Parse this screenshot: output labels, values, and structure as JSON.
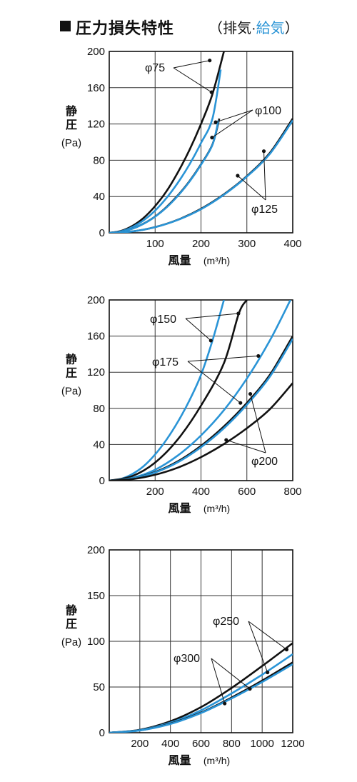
{
  "header": {
    "title": "圧力損失特性",
    "sub_open": "（排気·",
    "sub_blue": "給気",
    "sub_close": "）"
  },
  "colors": {
    "black": "#111111",
    "blue": "#2a94d6",
    "grid": "#333333"
  },
  "chart_data": [
    {
      "type": "line",
      "ylabel": "静圧",
      "ylabel_unit": "(Pa)",
      "xlabel": "風量",
      "xlabel_unit": "(m³/h)",
      "xlim": [
        0,
        400
      ],
      "ylim": [
        0,
        200
      ],
      "xticks": [
        0,
        100,
        200,
        300,
        400
      ],
      "yticks": [
        0,
        40,
        80,
        120,
        160,
        200
      ],
      "x_tick_labels": [
        "100",
        "200",
        "300",
        "400"
      ],
      "y_tick_labels": [
        "0",
        "40",
        "80",
        "120",
        "160",
        "200"
      ],
      "grid": true,
      "series": [
        {
          "color": "black",
          "x": [
            0,
            25,
            50,
            75,
            100,
            125,
            150,
            175,
            200,
            225,
            250
          ],
          "y": [
            0,
            2.0,
            7.5,
            16.5,
            29.5,
            46.0,
            67.0,
            91.5,
            120.0,
            153.0,
            200.0
          ]
        },
        {
          "color": "blue",
          "x": [
            0,
            25,
            50,
            75,
            100,
            125,
            150,
            175,
            200,
            225,
            243
          ],
          "y": [
            0,
            1.6,
            6.2,
            13.8,
            24.5,
            38.5,
            55.5,
            75.5,
            99.0,
            126.0,
            180.0
          ]
        },
        {
          "color": "black",
          "x": [
            0,
            25,
            50,
            75,
            100,
            125,
            150,
            175,
            200,
            225,
            240
          ],
          "y": [
            0,
            1.1,
            4.5,
            10.2,
            18.0,
            28.5,
            41.5,
            57.0,
            75.5,
            97.5,
            126.0
          ]
        },
        {
          "color": "blue",
          "x": [
            0,
            25,
            50,
            75,
            100,
            125,
            150,
            175,
            200,
            225,
            238
          ],
          "y": [
            0,
            1.1,
            4.4,
            10.0,
            17.8,
            28.0,
            41.0,
            56.5,
            75.0,
            97.0,
            124.0
          ]
        },
        {
          "color": "black",
          "x": [
            0,
            50,
            100,
            150,
            200,
            250,
            300,
            350,
            400
          ],
          "y": [
            0,
            1.5,
            6.3,
            14.5,
            26.5,
            42.5,
            62.5,
            88.0,
            126.0
          ]
        },
        {
          "color": "blue",
          "x": [
            0,
            50,
            100,
            150,
            200,
            250,
            300,
            350,
            400
          ],
          "y": [
            0,
            1.5,
            6.2,
            14.3,
            26.0,
            42.0,
            62.0,
            87.0,
            124.0
          ]
        }
      ],
      "points": [
        {
          "x": 219,
          "y": 190
        },
        {
          "x": 223,
          "y": 155
        },
        {
          "x": 232,
          "y": 122
        },
        {
          "x": 224,
          "y": 105
        },
        {
          "x": 337,
          "y": 90
        },
        {
          "x": 280,
          "y": 63
        }
      ],
      "annotations": [
        {
          "label": "φ75"
        },
        {
          "label": "φ100"
        },
        {
          "label": "φ125"
        }
      ]
    },
    {
      "type": "line",
      "ylabel": "静圧",
      "ylabel_unit": "(Pa)",
      "xlabel": "風量",
      "xlabel_unit": "(m³/h)",
      "xlim": [
        0,
        800
      ],
      "ylim": [
        0,
        200
      ],
      "xticks": [
        0,
        200,
        400,
        600,
        800
      ],
      "yticks": [
        0,
        40,
        80,
        120,
        160,
        200
      ],
      "x_tick_labels": [
        "200",
        "400",
        "600",
        "800"
      ],
      "y_tick_labels": [
        "0",
        "40",
        "80",
        "120",
        "160",
        "200"
      ],
      "grid": true,
      "series": [
        {
          "color": "blue",
          "x": [
            0,
            50,
            100,
            150,
            200,
            250,
            300,
            350,
            400,
            450,
            500
          ],
          "y": [
            0,
            1.8,
            7.2,
            16.0,
            29.0,
            45.5,
            65.5,
            89.0,
            117.0,
            155.0,
            200.0
          ]
        },
        {
          "color": "black",
          "x": [
            0,
            100,
            200,
            300,
            400,
            500,
            565,
            600
          ],
          "y": [
            0,
            5.0,
            20.0,
            46.0,
            83.0,
            130.0,
            185.0,
            200.0
          ]
        },
        {
          "color": "blue",
          "x": [
            0,
            100,
            200,
            300,
            400,
            500,
            600,
            700,
            790
          ],
          "y": [
            0,
            3.0,
            12.0,
            28.0,
            50.0,
            78.0,
            113.0,
            155.0,
            200.0
          ]
        },
        {
          "color": "black",
          "x": [
            0,
            100,
            200,
            300,
            400,
            500,
            600,
            700,
            800
          ],
          "y": [
            0,
            2.3,
            9.5,
            21.5,
            38.5,
            60.0,
            86.0,
            117.0,
            160.0
          ]
        },
        {
          "color": "blue",
          "x": [
            0,
            100,
            200,
            300,
            400,
            500,
            600,
            700,
            800
          ],
          "y": [
            0,
            2.2,
            9.0,
            20.5,
            37.0,
            58.0,
            84.0,
            115.0,
            157.0
          ]
        },
        {
          "color": "black",
          "x": [
            0,
            100,
            200,
            300,
            400,
            500,
            600,
            700,
            800
          ],
          "y": [
            0,
            1.6,
            6.5,
            14.5,
            26.0,
            40.5,
            58.0,
            79.0,
            108.0
          ]
        }
      ],
      "points": [
        {
          "x": 443,
          "y": 155
        },
        {
          "x": 563,
          "y": 185
        },
        {
          "x": 650,
          "y": 138
        },
        {
          "x": 572,
          "y": 86
        },
        {
          "x": 615,
          "y": 96
        },
        {
          "x": 510,
          "y": 45
        }
      ],
      "annotations": [
        {
          "label": "φ150"
        },
        {
          "label": "φ175"
        },
        {
          "label": "φ200"
        }
      ]
    },
    {
      "type": "line",
      "ylabel": "静圧",
      "ylabel_unit": "(Pa)",
      "xlabel": "風量",
      "xlabel_unit": "(m³/h)",
      "xlim": [
        0,
        1200
      ],
      "ylim": [
        0,
        200
      ],
      "xticks": [
        0,
        200,
        400,
        600,
        800,
        1000,
        1200
      ],
      "yticks": [
        0,
        50,
        100,
        150,
        200
      ],
      "x_tick_labels": [
        "200",
        "400",
        "600",
        "800",
        "1000",
        "1200"
      ],
      "y_tick_labels": [
        "0",
        "50",
        "100",
        "150",
        "200"
      ],
      "grid": true,
      "series": [
        {
          "color": "black",
          "x": [
            0,
            200,
            400,
            600,
            800,
            1000,
            1200
          ],
          "y": [
            0,
            3.2,
            12.5,
            28.0,
            49.0,
            73.0,
            98.0
          ]
        },
        {
          "color": "blue",
          "x": [
            0,
            200,
            400,
            600,
            800,
            1000,
            1200
          ],
          "y": [
            0,
            2.9,
            11.0,
            24.5,
            43.0,
            63.5,
            86.0
          ]
        },
        {
          "color": "black",
          "x": [
            0,
            200,
            400,
            600,
            800,
            1000,
            1200
          ],
          "y": [
            0,
            2.6,
            10.0,
            22.0,
            38.5,
            57.0,
            77.0
          ]
        },
        {
          "color": "blue",
          "x": [
            0,
            200,
            400,
            600,
            800,
            1000,
            1200
          ],
          "y": [
            0,
            2.5,
            9.6,
            21.5,
            37.5,
            55.5,
            75.0
          ]
        }
      ],
      "points": [
        {
          "x": 1160,
          "y": 91
        },
        {
          "x": 1035,
          "y": 66
        },
        {
          "x": 920,
          "y": 48
        },
        {
          "x": 755,
          "y": 32
        }
      ],
      "annotations": [
        {
          "label": "φ250"
        },
        {
          "label": "φ300"
        }
      ]
    }
  ]
}
